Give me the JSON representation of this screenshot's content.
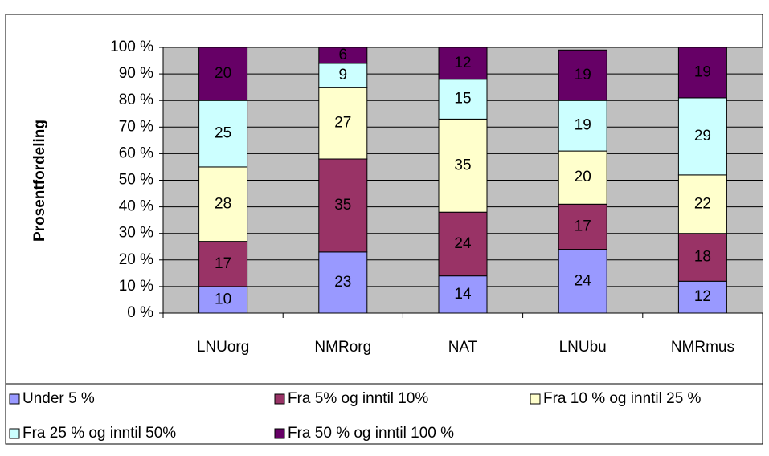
{
  "chart_data": {
    "type": "bar",
    "stacked": true,
    "y_label": "Prosentfordeling",
    "categories": [
      "LNUorg",
      "NMRorg",
      "NAT",
      "LNUbu",
      "NMRmus"
    ],
    "series": [
      {
        "name": "Under 5 %",
        "color": "#9999ff",
        "values": [
          10,
          23,
          14,
          24,
          12
        ]
      },
      {
        "name": "Fra 5% og inntil 10%",
        "color": "#993366",
        "values": [
          17,
          35,
          24,
          17,
          18
        ]
      },
      {
        "name": "Fra 10 % og inntil 25 %",
        "color": "#ffffcc",
        "values": [
          28,
          27,
          35,
          20,
          22
        ]
      },
      {
        "name": "Fra 25 % og inntil 50%",
        "color": "#ccffff",
        "values": [
          25,
          9,
          15,
          19,
          29
        ]
      },
      {
        "name": "Fra 50 % og inntil 100 %",
        "color": "#660066",
        "values": [
          20,
          6,
          12,
          19,
          19
        ]
      }
    ],
    "ylim": [
      0,
      100
    ],
    "yticks": [
      {
        "value": 0,
        "label": "0 %"
      },
      {
        "value": 10,
        "label": "10 %"
      },
      {
        "value": 20,
        "label": "20 %"
      },
      {
        "value": 30,
        "label": "30 %"
      },
      {
        "value": 40,
        "label": "40 %"
      },
      {
        "value": 50,
        "label": "50 %"
      },
      {
        "value": 60,
        "label": "60 %"
      },
      {
        "value": 70,
        "label": "70 %"
      },
      {
        "value": 80,
        "label": "80 %"
      },
      {
        "value": 90,
        "label": "90 %"
      },
      {
        "value": 100,
        "label": "100 %"
      }
    ],
    "grid": true,
    "legend": "bottom"
  }
}
